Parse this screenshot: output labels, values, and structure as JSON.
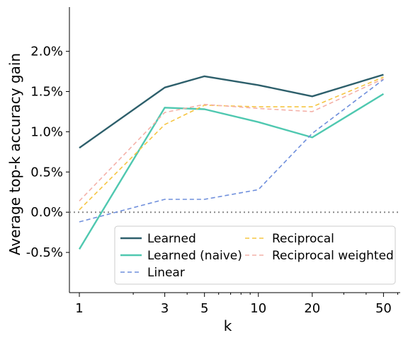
{
  "chart_data": {
    "type": "line",
    "title": "",
    "xlabel": "k",
    "ylabel": "Average top-k accuracy gain",
    "x_scale": "log",
    "x": [
      1,
      3,
      5,
      10,
      20,
      50
    ],
    "x_tick_labels": [
      "1",
      "3",
      "5",
      "10",
      "20",
      "50"
    ],
    "y_ticks": [
      -0.5,
      0.0,
      0.5,
      1.0,
      1.5,
      2.0
    ],
    "y_tick_labels": [
      "-0.5%",
      "0.0%",
      "0.5%",
      "1.0%",
      "1.5%",
      "2.0%"
    ],
    "xlim": [
      0.88,
      62
    ],
    "ylim": [
      -1.0,
      2.55
    ],
    "y_unit": "%",
    "grid": false,
    "reference_line": {
      "y": 0.0,
      "style": "dotted",
      "color": "#888888"
    },
    "legend_position": "lower-right",
    "series": [
      {
        "name": "Learned",
        "style": "solid",
        "color": "#2d5f6b",
        "values": [
          0.8,
          1.55,
          1.69,
          1.58,
          1.44,
          1.71
        ]
      },
      {
        "name": "Learned (naive)",
        "style": "solid",
        "color": "#4fc8b0",
        "values": [
          -0.46,
          1.3,
          1.28,
          1.12,
          0.93,
          1.47
        ]
      },
      {
        "name": "Linear",
        "style": "dashed",
        "color": "#6f8fdc",
        "values": [
          -0.12,
          0.16,
          0.16,
          0.28,
          0.98,
          1.65
        ]
      },
      {
        "name": "Reciprocal",
        "style": "dashed",
        "color": "#f5c542",
        "values": [
          0.03,
          1.09,
          1.33,
          1.31,
          1.31,
          1.68
        ]
      },
      {
        "name": "Reciprocal weighted",
        "style": "dashed",
        "color": "#f4b1a8",
        "values": [
          0.14,
          1.24,
          1.34,
          1.29,
          1.25,
          1.66
        ]
      }
    ]
  }
}
